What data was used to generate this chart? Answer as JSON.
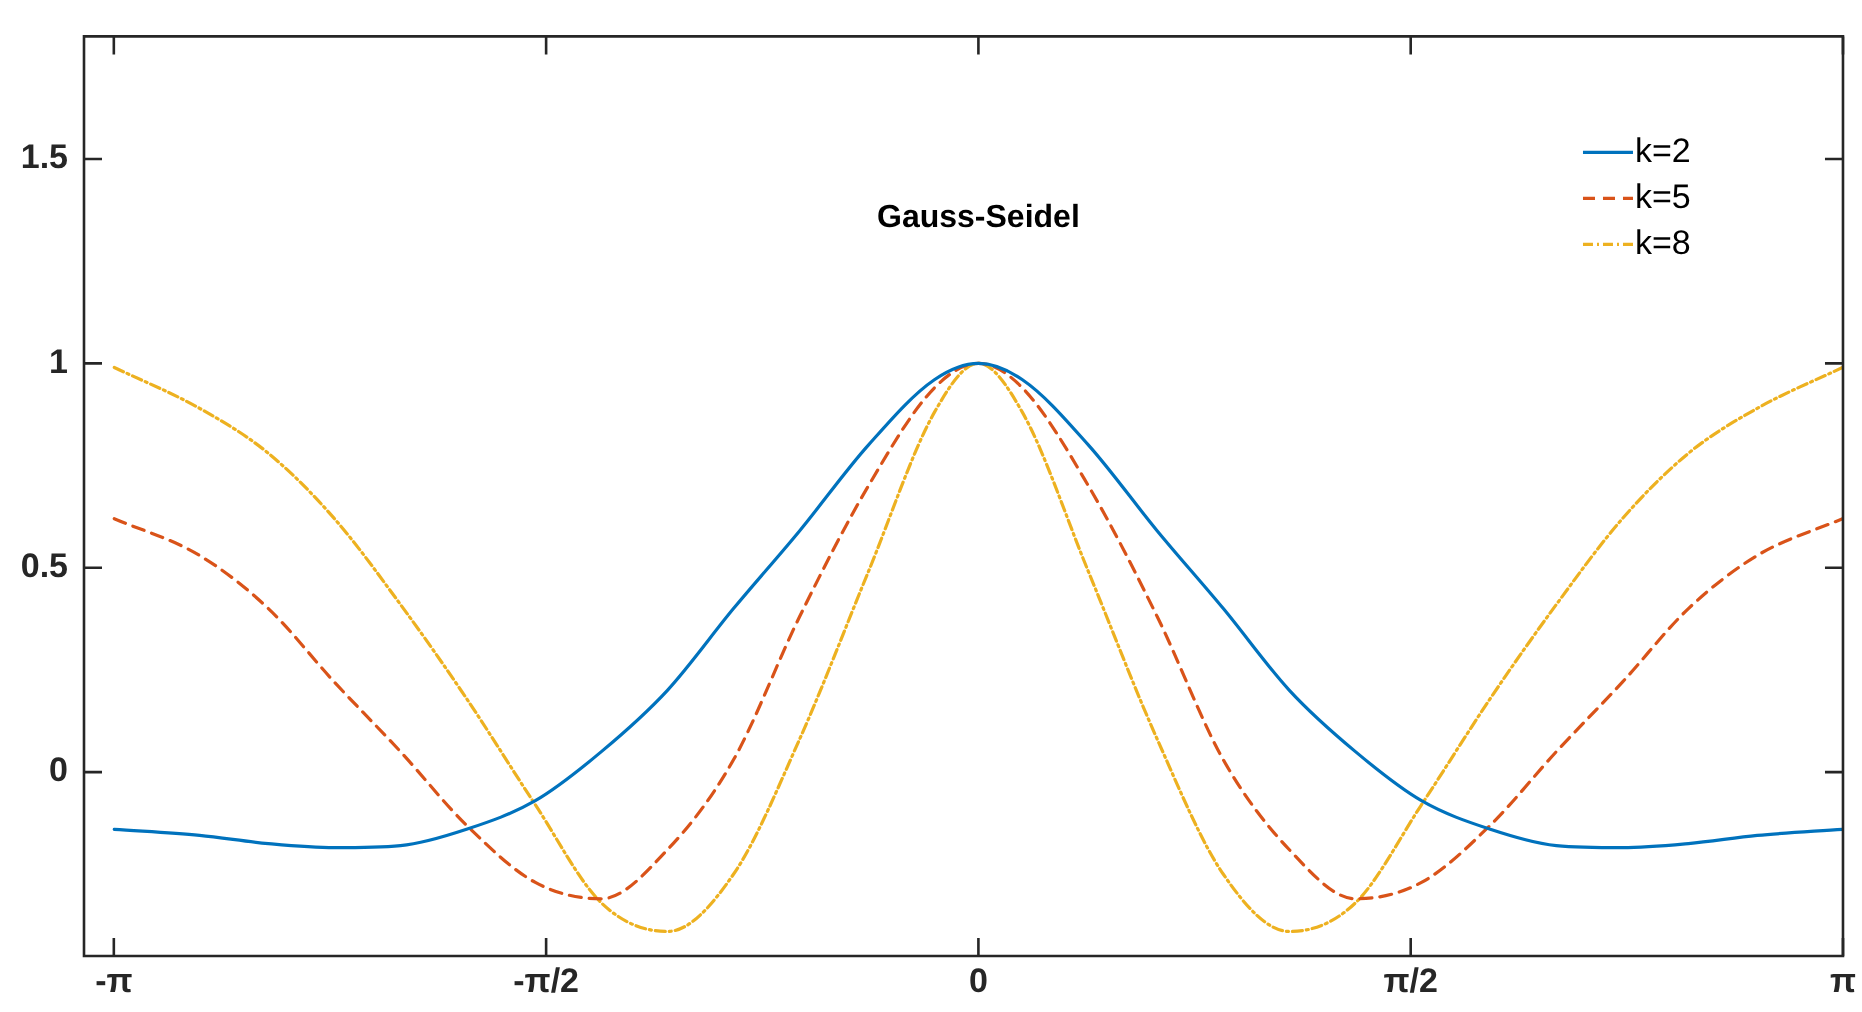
{
  "chart_data": {
    "type": "line",
    "title": "Gauss-Seidel",
    "x": [
      -3.14,
      -2.83,
      -2.58,
      -2.34,
      -2.1,
      -1.86,
      -1.61,
      -1.37,
      -1.13,
      -0.89,
      -0.65,
      -0.4,
      -0.16,
      0,
      0.16,
      0.4,
      0.65,
      0.89,
      1.13,
      1.37,
      1.61,
      1.86,
      2.1,
      2.34,
      2.58,
      2.83,
      3.14
    ],
    "series": [
      {
        "name": "k=2",
        "color": "#0072bd",
        "line_style": "solid",
        "values": [
          -0.14,
          -0.155,
          -0.175,
          -0.185,
          -0.18,
          -0.14,
          -0.07,
          0.05,
          0.2,
          0.4,
          0.59,
          0.8,
          0.96,
          1,
          0.96,
          0.8,
          0.59,
          0.4,
          0.2,
          0.05,
          -0.07,
          -0.14,
          -0.18,
          -0.185,
          -0.175,
          -0.155,
          -0.14
        ]
      },
      {
        "name": "k=5",
        "color": "#d95319",
        "line_style": "dashed",
        "values": [
          0.62,
          0.53,
          0.4,
          0.22,
          0.05,
          -0.13,
          -0.27,
          -0.31,
          -0.19,
          0.03,
          0.38,
          0.7,
          0.94,
          1,
          0.94,
          0.7,
          0.38,
          0.03,
          -0.19,
          -0.31,
          -0.27,
          -0.13,
          0.05,
          0.22,
          0.4,
          0.53,
          0.62
        ]
      },
      {
        "name": "k=8",
        "color": "#edb120",
        "line_style": "dotted",
        "values": [
          0.99,
          0.89,
          0.78,
          0.62,
          0.41,
          0.18,
          -0.08,
          -0.32,
          -0.39,
          -0.25,
          0.08,
          0.49,
          0.88,
          1,
          0.88,
          0.49,
          0.08,
          -0.25,
          -0.39,
          -0.32,
          -0.08,
          0.18,
          0.41,
          0.62,
          0.78,
          0.89,
          0.99
        ]
      }
    ],
    "xlim": [
      -3.25,
      3.1416
    ],
    "xticks": [
      {
        "value": -3.1416,
        "label": "-π"
      },
      {
        "value": -1.5708,
        "label": "-π/2"
      },
      0,
      {
        "value": 1.5708,
        "label": "π/2"
      },
      {
        "value": 3.1416,
        "label": "π"
      }
    ],
    "ylim": [
      -0.45,
      1.8
    ],
    "yticks": [
      0,
      0.5,
      1,
      1.5
    ],
    "grid": false,
    "legend": "top right",
    "marker": "none"
  }
}
